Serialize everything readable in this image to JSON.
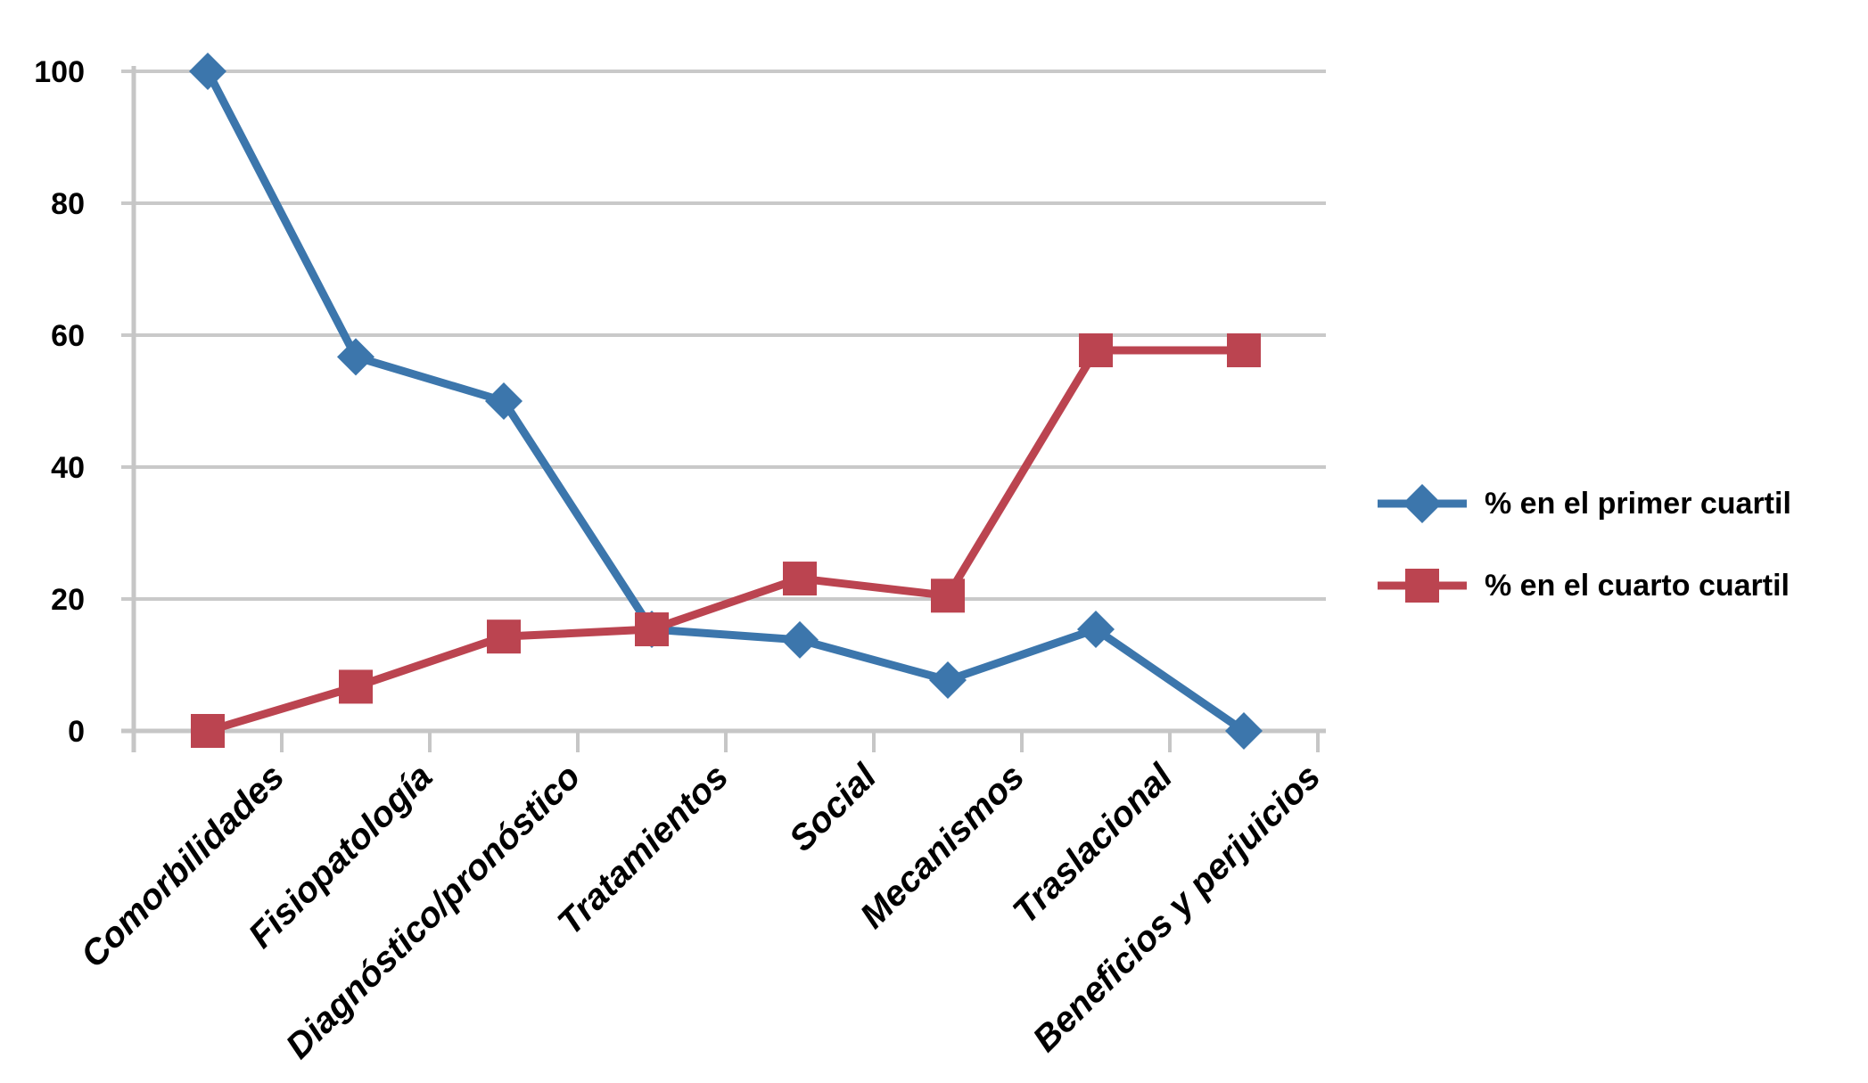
{
  "chart_data": {
    "type": "line",
    "title": "",
    "xlabel": "",
    "ylabel": "",
    "categories": [
      "Comorbilidades",
      "Fisiopatología",
      "Diagnóstico/pronóstico",
      "Tratamientos",
      "Social",
      "Mecanismos",
      "Traslacional",
      "Beneficios y perjuicios"
    ],
    "series": [
      {
        "name": "% en el primer cuartil",
        "marker": "diamond",
        "color": "#3C76AC",
        "values": [
          100,
          56.7,
          50,
          15.4,
          13.8,
          7.7,
          15.4,
          0
        ]
      },
      {
        "name": "% en el cuarto cuartil",
        "marker": "square",
        "color": "#BB4450",
        "values": [
          0,
          6.7,
          14.3,
          15.4,
          23.1,
          20.5,
          57.7,
          57.7
        ]
      }
    ],
    "ylim": [
      0,
      100
    ],
    "yticks": [
      0,
      20,
      40,
      60,
      80,
      100
    ],
    "grid": true,
    "legend_position": "right-center",
    "styles": {
      "gridline_color": "#C9C9C9",
      "axis_color": "#C6C6C6",
      "label_color": "#000000",
      "background": "#FFFFFF"
    }
  }
}
